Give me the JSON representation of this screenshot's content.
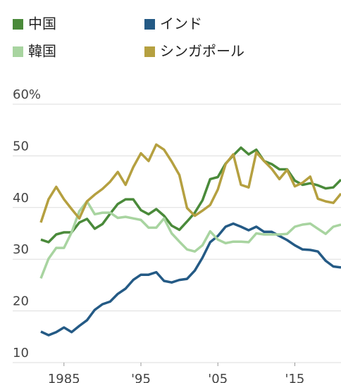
{
  "chart_data": {
    "type": "line",
    "x": [
      1982,
      1983,
      1984,
      1985,
      1986,
      1987,
      1988,
      1989,
      1990,
      1991,
      1992,
      1993,
      1994,
      1995,
      1996,
      1997,
      1998,
      1999,
      2000,
      2001,
      2002,
      2003,
      2004,
      2005,
      2006,
      2007,
      2008,
      2009,
      2010,
      2011,
      2012,
      2013,
      2014,
      2015,
      2016,
      2017,
      2018,
      2019,
      2020,
      2021
    ],
    "series": [
      {
        "name": "中国",
        "color": "#4a8a3a",
        "values": [
          33.8,
          33.3,
          34.8,
          35.2,
          35.2,
          37.1,
          37.8,
          35.9,
          36.8,
          38.8,
          40.7,
          41.6,
          41.6,
          39.5,
          38.7,
          39.7,
          38.4,
          36.5,
          35.7,
          37.3,
          39,
          41.4,
          45.5,
          45.9,
          48.5,
          50.1,
          51.6,
          50.3,
          51.2,
          49,
          48.4,
          47.4,
          47.4,
          45.2,
          44.4,
          44.7,
          44.3,
          43.7,
          43.9,
          45.4
        ]
      },
      {
        "name": "インド",
        "color": "#245a85",
        "values": [
          16,
          15.3,
          15.9,
          16.8,
          15.9,
          17.1,
          18.2,
          20.2,
          21.3,
          21.8,
          23.3,
          24.3,
          26,
          27,
          27,
          27.5,
          25.8,
          25.5,
          26,
          26.2,
          27.8,
          30.3,
          33.3,
          34.5,
          36.3,
          36.9,
          36.3,
          35.6,
          36.3,
          35.3,
          35.3,
          34.5,
          33.7,
          32.7,
          31.9,
          31.8,
          31.5,
          29.7,
          28.6,
          28.4
        ]
      },
      {
        "name": "韓国",
        "color": "#a8d4a0",
        "values": [
          26.3,
          30.1,
          32.2,
          32.2,
          35.2,
          39.3,
          41.2,
          38.7,
          39,
          39,
          38,
          38.2,
          37.9,
          37.6,
          36.1,
          36.1,
          37.9,
          35,
          33.4,
          31.9,
          31.5,
          32.7,
          35.4,
          33.8,
          33.1,
          33.4,
          33.4,
          33.3,
          35,
          34.8,
          34.8,
          34.8,
          34.9,
          36.3,
          36.7,
          36.9,
          35.9,
          34.9,
          36.3,
          36.7
        ]
      },
      {
        "name": "シンガポール",
        "color": "#b5a040",
        "values": [
          37.1,
          41.6,
          44,
          41.6,
          39.7,
          37.9,
          41.2,
          42.5,
          43.6,
          45,
          46.9,
          44.4,
          47.8,
          50.5,
          49,
          52.2,
          51.2,
          48.9,
          46.3,
          39.9,
          38.4,
          39.4,
          40.5,
          43.5,
          48.4,
          50.3,
          44.4,
          43.9,
          50.7,
          49,
          47.5,
          45.5,
          47.3,
          44.1,
          44.8,
          46,
          41.7,
          41.2,
          40.9,
          42.7
        ]
      }
    ],
    "xlim": [
      1982,
      2021
    ],
    "xticks": [
      1985,
      {
        "value": 1995,
        "label": "'95"
      },
      {
        "value": 2005,
        "label": "'05"
      },
      {
        "value": 2015,
        "label": "'15"
      }
    ],
    "ylim": [
      10,
      60
    ],
    "yticks": [
      10,
      20,
      30,
      40,
      {
        "value": 60,
        "label": "60%"
      },
      50
    ],
    "grid": true
  }
}
